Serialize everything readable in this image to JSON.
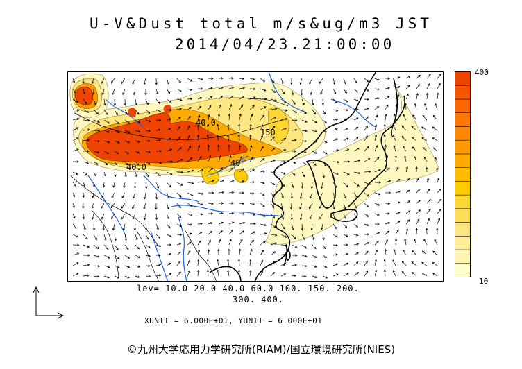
{
  "title": {
    "line1": "U-V&Dust total m/s&ug/m3 JST",
    "line2": "2014/04/23.21:00:00"
  },
  "legend": {
    "max_label": "400",
    "min_label": "10",
    "colors": [
      "#ffffcc",
      "#fff5b0",
      "#ffee99",
      "#ffe680",
      "#ffdd55",
      "#ffd633",
      "#ffcc00",
      "#ffbb00",
      "#ffaa00",
      "#ff9900",
      "#ff8800",
      "#ff7700",
      "#ff6600",
      "#f85500",
      "#ee4400"
    ]
  },
  "contours": {
    "levels_line1": "lev= 10.0 20.0 40.0 60.0 100. 150. 200.",
    "levels_line2": "300. 400.",
    "map_labels": [
      "40.0",
      "150",
      "40.0",
      "40"
    ]
  },
  "units_text": "XUNIT = 6.000E+01, YUNIT = 6.000E+01",
  "credit": "©九州大学応用力学研究所(RIAM)/国立環境研究所(NIES)",
  "colors": {
    "dust_heavy": "#ee4400",
    "dust_high": "#ff7700",
    "dust_mid": "#ffcc00",
    "dust_low": "#ffee99",
    "dust_faint": "#ffffcc",
    "rivers": "#1e64e6",
    "coast": "#000000"
  }
}
